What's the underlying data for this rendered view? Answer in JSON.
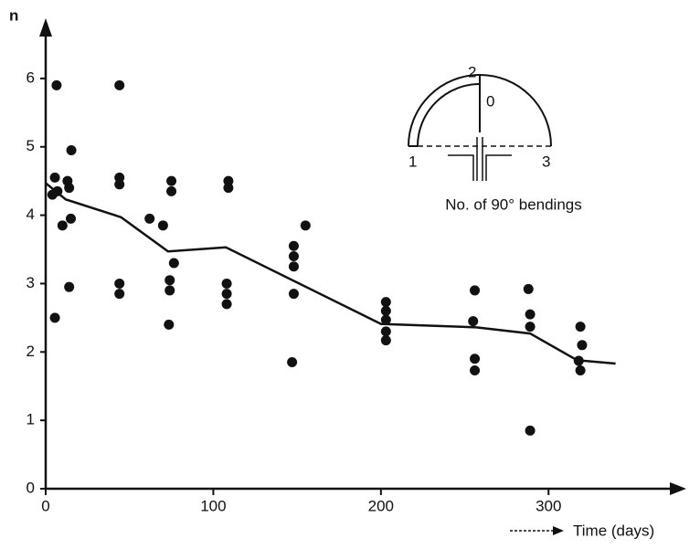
{
  "chart_data": {
    "type": "scatter",
    "y_label": "n",
    "x_label": "Time (days)",
    "annotations": [
      "2",
      "0",
      "1",
      "3",
      "No. of 90° bendings"
    ],
    "xlim": [
      0,
      380
    ],
    "ylim": [
      0,
      6.8
    ],
    "xticks": [
      0,
      100,
      200,
      300
    ],
    "yticks": [
      0,
      1,
      2,
      3,
      4,
      5,
      6
    ],
    "series": [
      {
        "type": "scatter",
        "color": "#111111",
        "x": [
          6.5,
          5.5,
          4,
          7,
          13,
          14,
          15.3,
          10,
          15,
          14,
          5.5,
          44,
          44,
          44,
          44,
          44,
          62,
          70,
          75,
          75,
          76.5,
          74,
          74,
          73.5,
          109,
          109,
          108,
          108,
          108,
          148,
          148,
          148,
          148,
          147,
          155,
          203,
          203,
          203,
          203,
          203,
          256,
          255,
          256,
          256,
          288,
          289,
          289,
          289,
          319,
          320,
          318,
          319
        ],
        "values": [
          5.9,
          4.55,
          4.3,
          4.35,
          4.5,
          4.4,
          4.95,
          3.85,
          3.95,
          2.95,
          2.5,
          5.9,
          4.55,
          4.45,
          3.0,
          2.85,
          3.95,
          3.85,
          4.5,
          4.35,
          3.3,
          3.05,
          2.9,
          2.4,
          4.5,
          4.4,
          3.0,
          2.85,
          2.7,
          3.55,
          3.4,
          3.25,
          2.85,
          1.85,
          3.85,
          2.73,
          2.6,
          2.47,
          2.3,
          2.17,
          2.9,
          2.45,
          1.9,
          1.73,
          2.92,
          2.55,
          2.37,
          0.85,
          2.37,
          2.1,
          1.87,
          1.73
        ]
      },
      {
        "type": "line",
        "color": "#111111",
        "x": [
          0,
          12,
          45,
          73,
          107.5,
          200,
          257,
          289,
          317,
          340
        ],
        "values": [
          4.47,
          4.23,
          3.97,
          3.47,
          3.53,
          2.41,
          2.36,
          2.27,
          1.88,
          1.83
        ]
      }
    ]
  }
}
